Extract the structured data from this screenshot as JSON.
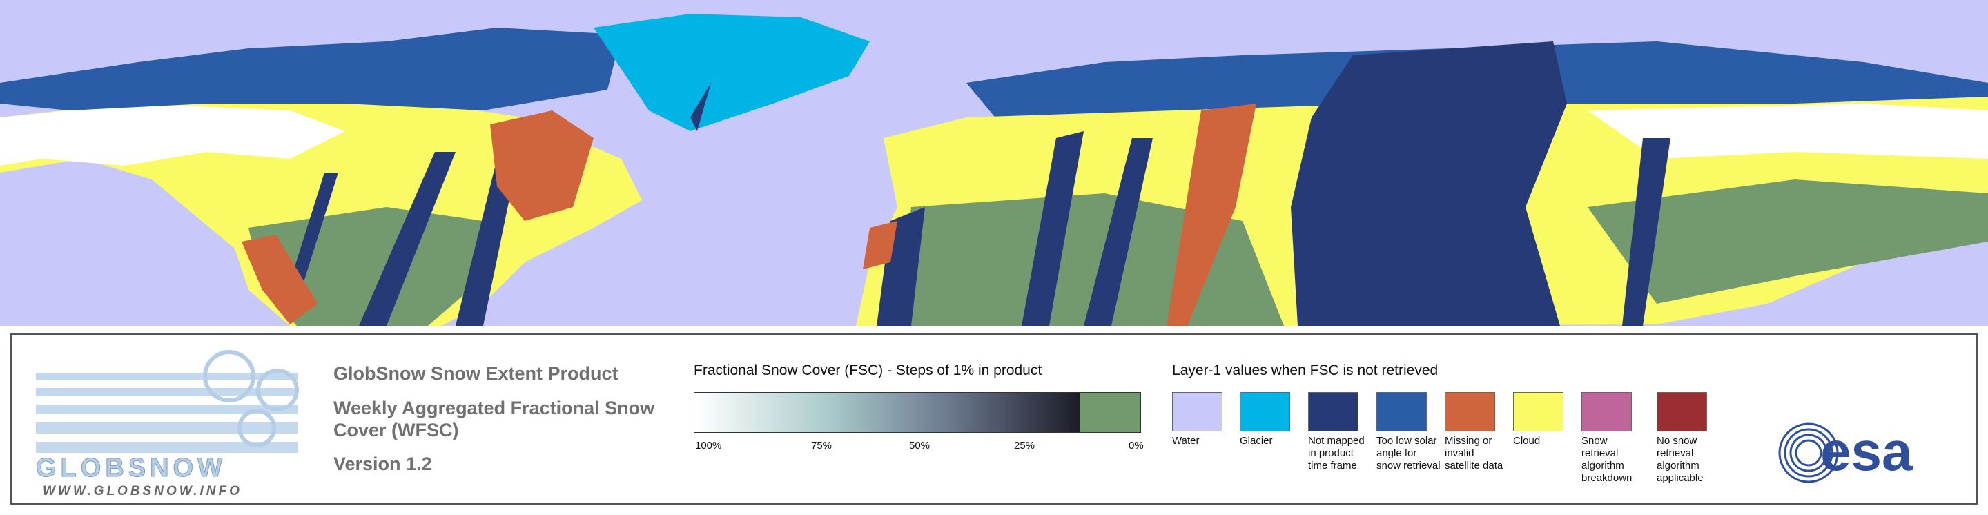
{
  "logo": {
    "name": "GLOBSNOW",
    "url": "WWW.GLOBSNOW.INFO"
  },
  "product": {
    "title": "GlobSnow Snow Extent Product",
    "subtitle": "Weekly Aggregated Fractional Snow Cover (WFSC)",
    "version": "Version 1.2"
  },
  "fsc_scale": {
    "title": "Fractional Snow Cover (FSC) - Steps of 1% in product",
    "ticks": [
      "100%",
      "75%",
      "50%",
      "25%",
      "0%"
    ]
  },
  "layer1": {
    "title": "Layer-1 values when FSC is not retrieved",
    "items": [
      {
        "label": "Water",
        "color": "#c8c8fa"
      },
      {
        "label": "Glacier",
        "color": "#00b4e6"
      },
      {
        "label": "Not mapped in product time frame",
        "color": "#263a78"
      },
      {
        "label": "Too low solar angle for snow retrieval",
        "color": "#2a5ca8"
      },
      {
        "label": "Missing or invalid satellite data",
        "color": "#d0643c"
      },
      {
        "label": "Cloud",
        "color": "#fafa64"
      },
      {
        "label": "Snow retrieval algorithm breakdown",
        "color": "#c0649c"
      },
      {
        "label": "No snow retrieval algorithm applicable",
        "color": "#9a2e32"
      }
    ]
  },
  "esa": "esa"
}
